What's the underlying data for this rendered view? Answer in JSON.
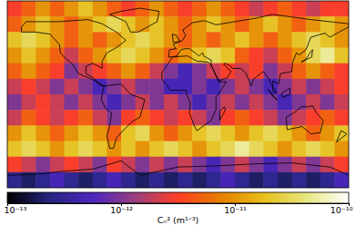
{
  "chart_data": {
    "type": "heatmap",
    "log": true,
    "tick_labels": false,
    "xlim": [
      -180,
      180
    ],
    "ylim": [
      -90,
      90
    ],
    "x": [
      -172.5,
      -157.5,
      -142.5,
      -127.5,
      -112.5,
      -97.5,
      -82.5,
      -67.5,
      -52.5,
      -37.5,
      -22.5,
      -7.5,
      7.5,
      22.5,
      37.5,
      52.5,
      67.5,
      82.5,
      97.5,
      112.5,
      127.5,
      142.5,
      157.5,
      172.5
    ],
    "y": [
      82.5,
      67.5,
      52.5,
      37.5,
      22.5,
      7.5,
      -7.5,
      -22.5,
      -37.5,
      -52.5,
      -67.5,
      -82.5
    ],
    "cells": [
      [
        3e-12,
        5e-12,
        1e-11,
        5e-12,
        1e-11,
        2e-11,
        1e-11,
        5e-12,
        3e-12,
        5e-12,
        1e-11,
        5e-12,
        3e-12,
        5e-12,
        1e-11,
        5e-12,
        3e-12,
        2e-12,
        3e-12,
        5e-12,
        3e-12,
        2e-12,
        3e-12,
        3e-12
      ],
      [
        5e-12,
        1e-11,
        2e-11,
        1e-11,
        5e-12,
        1e-11,
        2e-11,
        3e-11,
        2e-11,
        1e-11,
        2e-11,
        1e-11,
        5e-12,
        1e-11,
        2e-11,
        1e-11,
        5e-12,
        1e-11,
        2e-11,
        1e-11,
        5e-12,
        1e-11,
        2e-11,
        1e-11
      ],
      [
        2e-11,
        3e-11,
        2e-11,
        1e-11,
        5e-12,
        1e-11,
        5e-12,
        1e-11,
        2e-11,
        3e-11,
        2e-11,
        1e-11,
        5e-12,
        1e-11,
        5e-12,
        1e-11,
        2e-11,
        1e-11,
        5e-12,
        1e-11,
        2e-11,
        3e-11,
        2e-11,
        1e-11
      ],
      [
        1e-11,
        2e-11,
        1e-11,
        5e-12,
        2e-12,
        5e-12,
        1e-11,
        2e-11,
        3e-11,
        2e-11,
        1e-11,
        5e-12,
        1e-11,
        2e-11,
        3e-11,
        2e-11,
        5e-12,
        3e-12,
        2e-12,
        5e-12,
        1e-11,
        3e-11,
        5e-11,
        2e-11
      ],
      [
        5e-12,
        1e-11,
        5e-12,
        3e-12,
        1e-12,
        2e-12,
        3e-12,
        5e-12,
        1e-11,
        5e-12,
        2e-12,
        1e-12,
        5e-13,
        1e-12,
        2e-12,
        3e-12,
        2e-12,
        3e-12,
        1e-12,
        2e-12,
        5e-12,
        1e-11,
        5e-12,
        3e-12
      ],
      [
        2e-12,
        3e-12,
        2e-12,
        1e-12,
        2e-12,
        1e-12,
        5e-13,
        1e-12,
        2e-12,
        1e-12,
        1e-12,
        5e-13,
        5e-13,
        1e-12,
        5e-13,
        1e-12,
        2e-12,
        1e-12,
        5e-13,
        1e-12,
        2e-12,
        1e-12,
        2e-12,
        3e-12
      ],
      [
        1e-12,
        2e-12,
        3e-12,
        2e-12,
        1e-12,
        2e-12,
        1e-12,
        5e-13,
        1e-12,
        2e-12,
        1e-12,
        2e-12,
        1e-12,
        5e-13,
        1e-12,
        2e-12,
        1e-12,
        2e-12,
        1e-12,
        5e-13,
        1e-12,
        2e-12,
        1e-12,
        2e-12
      ],
      [
        2e-12,
        5e-12,
        3e-12,
        2e-12,
        3e-12,
        5e-12,
        2e-12,
        1e-12,
        3e-12,
        5e-12,
        3e-12,
        2e-12,
        3e-12,
        2e-12,
        1e-12,
        3e-12,
        5e-12,
        3e-12,
        2e-12,
        1e-12,
        2e-12,
        3e-12,
        5e-12,
        3e-12
      ],
      [
        1e-11,
        2e-11,
        1e-11,
        5e-12,
        1e-11,
        2e-11,
        1e-11,
        5e-12,
        2e-11,
        3e-11,
        1e-11,
        5e-12,
        1e-11,
        2e-11,
        3e-11,
        2e-11,
        1e-11,
        2e-11,
        3e-11,
        2e-11,
        1e-11,
        5e-12,
        1e-11,
        2e-11
      ],
      [
        2e-11,
        3e-11,
        2e-11,
        1e-11,
        2e-11,
        3e-11,
        2e-11,
        1e-11,
        2e-11,
        1e-11,
        2e-11,
        3e-11,
        2e-11,
        1e-11,
        2e-11,
        3e-11,
        5e-11,
        3e-11,
        2e-11,
        1e-11,
        2e-11,
        3e-11,
        2e-11,
        1e-11
      ],
      [
        3e-12,
        2e-12,
        1e-12,
        2e-12,
        3e-12,
        2e-12,
        1e-12,
        3e-12,
        2e-12,
        1e-12,
        2e-12,
        1e-12,
        2e-12,
        1e-12,
        5e-13,
        1e-12,
        2e-12,
        1e-12,
        5e-13,
        1e-12,
        2e-12,
        1e-12,
        2e-12,
        3e-12
      ],
      [
        3e-13,
        2e-13,
        3e-13,
        5e-13,
        3e-13,
        2e-13,
        3e-13,
        5e-13,
        3e-13,
        2e-13,
        3e-13,
        2e-13,
        3e-13,
        2e-13,
        3e-13,
        5e-13,
        3e-13,
        2e-13,
        3e-13,
        2e-13,
        3e-13,
        2e-13,
        3e-13,
        5e-13
      ]
    ],
    "colorbar": {
      "label": "Cₙ² (m¹ᐟ³)",
      "range": [
        1e-13,
        1e-10
      ],
      "ticks": [
        {
          "value": 1e-13,
          "label": "10⁻¹³"
        },
        {
          "value": 1e-12,
          "label": "10⁻¹²"
        },
        {
          "value": 1e-11,
          "label": "10⁻¹¹"
        },
        {
          "value": 1e-10,
          "label": "10⁻¹⁰"
        }
      ]
    }
  }
}
